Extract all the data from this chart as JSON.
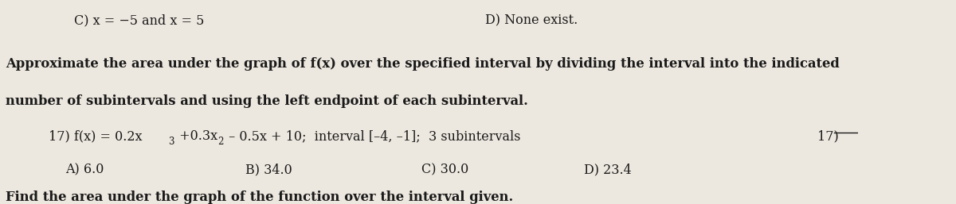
{
  "bg_color": "#ede8df",
  "text_color": "#1a1a1a",
  "line1_left": "C) x = −5 and x = 5",
  "line1_right": "D) None exist.",
  "bold_line1": "Approximate the area under the graph of f(x) over the specified interval by dividing the interval into the indicated",
  "bold_line2": "number of subintervals and using the left endpoint of each subinterval.",
  "q17_part1": "17) f(x) = 0.2x",
  "q17_sup3": "3",
  "q17_part2": " +0.3x",
  "q17_sup2": "2",
  "q17_part3": " – 0.5x + 10;  interval [–4, –1];  3 subintervals",
  "q17_label": "17)",
  "ans_a": "A) 6.0",
  "ans_b": "B) 34.0",
  "ans_c": "C) 30.0",
  "ans_d": "D) 23.4",
  "last_line": "Find the area under the graph of the function over the interval given.",
  "figsize": [
    12.0,
    2.57
  ],
  "dpi": 100
}
